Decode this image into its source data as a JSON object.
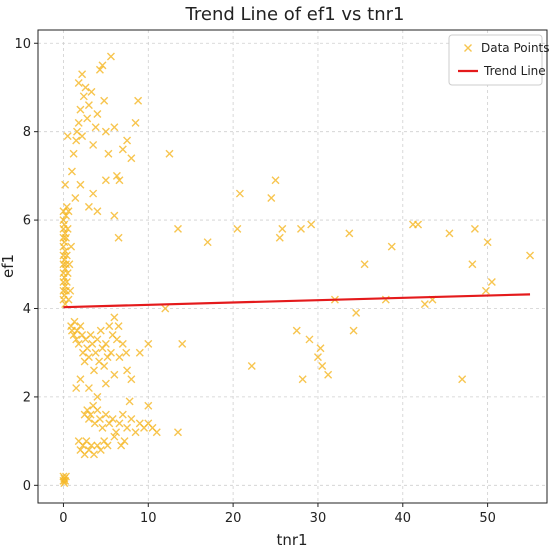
{
  "chart_data": {
    "type": "scatter",
    "title": "Trend Line of ef1 vs tnr1",
    "xlabel": "tnr1",
    "ylabel": "ef1",
    "xlim": [
      -3,
      57
    ],
    "ylim": [
      -0.4,
      10.3
    ],
    "xticks": [
      0,
      10,
      20,
      30,
      40,
      50
    ],
    "yticks": [
      0,
      2,
      4,
      6,
      8,
      10
    ],
    "grid": true,
    "legend_position": "top-right",
    "colors": {
      "points": "#f5b623",
      "trend": "#e41a1c"
    },
    "series": [
      {
        "name": "Data Points",
        "kind": "scatter",
        "marker": "x",
        "points": [
          [
            0,
            0.1
          ],
          [
            0,
            0.2
          ],
          [
            0.1,
            0.05
          ],
          [
            0.1,
            0.15
          ],
          [
            0.2,
            0.1
          ],
          [
            0.3,
            0.2
          ],
          [
            0,
            4.2
          ],
          [
            0,
            4.4
          ],
          [
            0,
            4.6
          ],
          [
            0,
            4.8
          ],
          [
            0,
            5.0
          ],
          [
            0,
            5.2
          ],
          [
            0,
            5.4
          ],
          [
            0,
            5.6
          ],
          [
            0,
            5.8
          ],
          [
            0,
            6.0
          ],
          [
            0,
            6.2
          ],
          [
            0.1,
            4.3
          ],
          [
            0.1,
            4.7
          ],
          [
            0.1,
            5.1
          ],
          [
            0.1,
            5.5
          ],
          [
            0.1,
            5.9
          ],
          [
            0.2,
            4.1
          ],
          [
            0.2,
            4.5
          ],
          [
            0.2,
            4.9
          ],
          [
            0.2,
            5.3
          ],
          [
            0.2,
            5.7
          ],
          [
            0.3,
            4.4
          ],
          [
            0.3,
            5.0
          ],
          [
            0.3,
            5.6
          ],
          [
            0.3,
            6.1
          ],
          [
            0.4,
            4.6
          ],
          [
            0.4,
            5.2
          ],
          [
            0.5,
            4.8
          ],
          [
            0.5,
            5.8
          ],
          [
            0.6,
            4.2
          ],
          [
            0.6,
            6.2
          ],
          [
            0.7,
            5.0
          ],
          [
            0.8,
            4.4
          ],
          [
            0.9,
            5.4
          ],
          [
            0.2,
            6.8
          ],
          [
            0.4,
            6.3
          ],
          [
            0.5,
            7.9
          ],
          [
            0.9,
            3.6
          ],
          [
            1.0,
            3.5
          ],
          [
            1.2,
            3.4
          ],
          [
            1.3,
            3.7
          ],
          [
            1.5,
            3.3
          ],
          [
            1.6,
            3.5
          ],
          [
            1.8,
            3.2
          ],
          [
            2.0,
            3.6
          ],
          [
            2.2,
            3.4
          ],
          [
            2.3,
            3.0
          ],
          [
            2.5,
            2.8
          ],
          [
            2.6,
            3.3
          ],
          [
            2.8,
            3.1
          ],
          [
            3.0,
            2.9
          ],
          [
            3.2,
            3.4
          ],
          [
            3.4,
            3.2
          ],
          [
            3.6,
            2.6
          ],
          [
            3.8,
            3.0
          ],
          [
            4.0,
            3.3
          ],
          [
            4.2,
            2.8
          ],
          [
            4.4,
            3.5
          ],
          [
            4.6,
            3.1
          ],
          [
            4.8,
            2.7
          ],
          [
            5.0,
            3.2
          ],
          [
            5.2,
            2.9
          ],
          [
            5.4,
            3.6
          ],
          [
            5.6,
            3.0
          ],
          [
            5.8,
            3.4
          ],
          [
            6.0,
            3.8
          ],
          [
            6.3,
            3.3
          ],
          [
            6.6,
            2.9
          ],
          [
            7.0,
            3.2
          ],
          [
            7.4,
            3.0
          ],
          [
            1.5,
            2.2
          ],
          [
            2.0,
            2.4
          ],
          [
            3.0,
            2.2
          ],
          [
            4.0,
            2.0
          ],
          [
            5.0,
            2.3
          ],
          [
            6.0,
            2.5
          ],
          [
            7.5,
            2.6
          ],
          [
            8.0,
            2.4
          ],
          [
            9.0,
            3.0
          ],
          [
            10.0,
            3.2
          ],
          [
            7.8,
            1.9
          ],
          [
            6.5,
            3.6
          ],
          [
            2.5,
            1.6
          ],
          [
            2.8,
            1.7
          ],
          [
            3.0,
            1.5
          ],
          [
            3.2,
            1.6
          ],
          [
            3.5,
            1.8
          ],
          [
            3.7,
            1.4
          ],
          [
            4.0,
            1.7
          ],
          [
            4.3,
            1.5
          ],
          [
            4.6,
            1.3
          ],
          [
            5.0,
            1.6
          ],
          [
            5.4,
            1.4
          ],
          [
            5.8,
            1.5
          ],
          [
            6.2,
            1.2
          ],
          [
            6.6,
            1.4
          ],
          [
            7.0,
            1.6
          ],
          [
            7.5,
            1.3
          ],
          [
            8.0,
            1.5
          ],
          [
            8.5,
            1.2
          ],
          [
            9.0,
            1.4
          ],
          [
            9.5,
            1.3
          ],
          [
            10.0,
            1.4
          ],
          [
            10.5,
            1.3
          ],
          [
            11.0,
            1.2
          ],
          [
            10.0,
            1.8
          ],
          [
            13.5,
            1.2
          ],
          [
            6.0,
            1.1
          ],
          [
            7.2,
            1.0
          ],
          [
            1.8,
            1.0
          ],
          [
            2.0,
            0.8
          ],
          [
            2.3,
            0.9
          ],
          [
            2.5,
            0.7
          ],
          [
            2.7,
            1.0
          ],
          [
            3.0,
            0.8
          ],
          [
            3.3,
            0.9
          ],
          [
            3.6,
            0.7
          ],
          [
            4.0,
            0.9
          ],
          [
            4.4,
            0.8
          ],
          [
            4.8,
            1.0
          ],
          [
            5.2,
            0.9
          ],
          [
            6.8,
            0.9
          ],
          [
            1.0,
            7.1
          ],
          [
            1.2,
            7.5
          ],
          [
            1.5,
            7.8
          ],
          [
            1.6,
            8.0
          ],
          [
            1.8,
            8.2
          ],
          [
            2.0,
            8.5
          ],
          [
            2.2,
            7.9
          ],
          [
            2.4,
            8.8
          ],
          [
            2.6,
            9.0
          ],
          [
            2.8,
            8.3
          ],
          [
            3.0,
            8.6
          ],
          [
            3.3,
            8.9
          ],
          [
            3.5,
            7.7
          ],
          [
            3.8,
            8.1
          ],
          [
            4.0,
            8.4
          ],
          [
            4.3,
            9.4
          ],
          [
            4.6,
            9.5
          ],
          [
            4.8,
            8.7
          ],
          [
            5.0,
            8.0
          ],
          [
            5.3,
            7.5
          ],
          [
            5.6,
            9.7
          ],
          [
            6.0,
            8.1
          ],
          [
            6.3,
            7.0
          ],
          [
            6.6,
            6.9
          ],
          [
            7.0,
            7.6
          ],
          [
            7.5,
            7.8
          ],
          [
            8.0,
            7.4
          ],
          [
            8.5,
            8.2
          ],
          [
            8.8,
            8.7
          ],
          [
            12.5,
            7.5
          ],
          [
            1.4,
            6.5
          ],
          [
            2.0,
            6.8
          ],
          [
            3.0,
            6.3
          ],
          [
            3.5,
            6.6
          ],
          [
            4.0,
            6.2
          ],
          [
            5.0,
            6.9
          ],
          [
            6.0,
            6.1
          ],
          [
            6.5,
            5.6
          ],
          [
            1.8,
            9.1
          ],
          [
            2.2,
            9.3
          ],
          [
            12.0,
            4.0
          ],
          [
            13.5,
            5.8
          ],
          [
            14.0,
            3.2
          ],
          [
            17.0,
            5.5
          ],
          [
            20.5,
            5.8
          ],
          [
            20.8,
            6.6
          ],
          [
            22.2,
            2.7
          ],
          [
            24.5,
            6.5
          ],
          [
            25.0,
            6.9
          ],
          [
            25.5,
            5.6
          ],
          [
            25.8,
            5.8
          ],
          [
            27.5,
            3.5
          ],
          [
            28.0,
            5.8
          ],
          [
            28.2,
            2.4
          ],
          [
            29.0,
            3.3
          ],
          [
            29.2,
            5.9
          ],
          [
            30.0,
            2.9
          ],
          [
            30.3,
            3.1
          ],
          [
            30.5,
            2.7
          ],
          [
            31.2,
            2.5
          ],
          [
            32.0,
            4.2
          ],
          [
            33.7,
            5.7
          ],
          [
            34.2,
            3.5
          ],
          [
            34.5,
            3.9
          ],
          [
            35.5,
            5.0
          ],
          [
            38.0,
            4.2
          ],
          [
            38.7,
            5.4
          ],
          [
            41.2,
            5.9
          ],
          [
            41.8,
            5.9
          ],
          [
            42.6,
            4.1
          ],
          [
            43.5,
            4.2
          ],
          [
            45.5,
            5.7
          ],
          [
            47.0,
            2.4
          ],
          [
            48.2,
            5.0
          ],
          [
            48.5,
            5.8
          ],
          [
            49.8,
            4.4
          ],
          [
            50.0,
            5.5
          ],
          [
            50.5,
            4.6
          ],
          [
            55.0,
            5.2
          ]
        ]
      },
      {
        "name": "Trend Line",
        "kind": "line",
        "points": [
          [
            0,
            4.03
          ],
          [
            55,
            4.32
          ]
        ]
      }
    ]
  }
}
